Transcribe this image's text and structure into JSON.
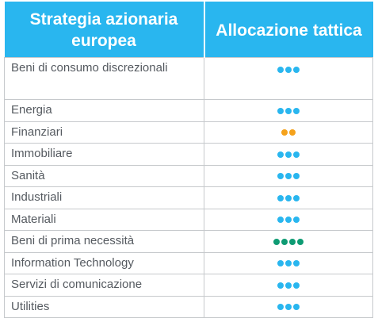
{
  "table": {
    "headers": [
      "Strategia azionaria europea",
      "Allocazione tattica"
    ],
    "rows": [
      {
        "sector": "Beni di consumo discrezionali",
        "dots": 3,
        "dot_color": "#29b6ef"
      },
      {
        "sector": "Energia",
        "dots": 3,
        "dot_color": "#29b6ef"
      },
      {
        "sector": "Finanziari",
        "dots": 2,
        "dot_color": "#f5a21b"
      },
      {
        "sector": "Immobiliare",
        "dots": 3,
        "dot_color": "#29b6ef"
      },
      {
        "sector": "Sanità",
        "dots": 3,
        "dot_color": "#29b6ef"
      },
      {
        "sector": "Industriali",
        "dots": 3,
        "dot_color": "#29b6ef"
      },
      {
        "sector": "Materiali",
        "dots": 3,
        "dot_color": "#29b6ef"
      },
      {
        "sector": "Beni di prima necessità",
        "dots": 4,
        "dot_color": "#0e9b73"
      },
      {
        "sector": "Information Technology",
        "dots": 3,
        "dot_color": "#29b6ef"
      },
      {
        "sector": "Servizi di comunicazione",
        "dots": 3,
        "dot_color": "#29b6ef"
      },
      {
        "sector": "Utilities",
        "dots": 3,
        "dot_color": "#29b6ef"
      }
    ]
  },
  "colors": {
    "header_bg": "#29b6ef",
    "header_text": "#ffffff",
    "body_text": "#555a60",
    "grid": "#c6c9cc"
  }
}
